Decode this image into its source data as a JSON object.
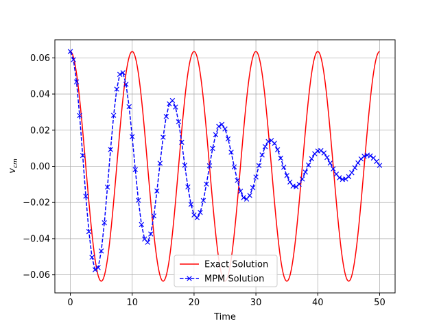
{
  "chart_data": {
    "type": "line",
    "title": "",
    "xlabel": "Time",
    "ylabel_main": "v",
    "ylabel_sub": "cm",
    "xlim": [
      -2.5,
      52.5
    ],
    "ylim": [
      -0.07,
      0.07
    ],
    "grid": true,
    "legend_placement": "lower-center",
    "x_ticks": [
      0,
      10,
      20,
      30,
      40,
      50
    ],
    "x_tick_labels": [
      "0",
      "10",
      "20",
      "30",
      "40",
      "50"
    ],
    "y_ticks": [
      -0.06,
      -0.04,
      -0.02,
      0.0,
      0.02,
      0.04,
      0.06
    ],
    "y_tick_labels": [
      "−0.06",
      "−0.04",
      "−0.02",
      "0.00",
      "0.02",
      "0.04",
      "0.06"
    ],
    "series": [
      {
        "name": "Exact Solution",
        "color": "#ff0000",
        "style": "solid",
        "marker": "none",
        "x": [
          0,
          1.25,
          2.5,
          3.75,
          5,
          6.25,
          7.5,
          8.75,
          10,
          11.25,
          12.5,
          13.75,
          15,
          16.25,
          17.5,
          18.75,
          20,
          21.25,
          22.5,
          23.75,
          25,
          26.25,
          27.5,
          28.75,
          30,
          31.25,
          32.5,
          33.75,
          35,
          36.25,
          37.5,
          38.75,
          40,
          41.25,
          42.5,
          43.75,
          45,
          46.25,
          47.5,
          48.75,
          50
        ],
        "y": [
          0.0635,
          0.0449,
          0.0,
          -0.0449,
          -0.0635,
          -0.0449,
          0.0,
          0.0449,
          0.0635,
          0.0449,
          0.0,
          -0.0449,
          -0.0635,
          -0.0449,
          0.0,
          0.0449,
          0.0635,
          0.0449,
          0.0,
          -0.0449,
          -0.0635,
          -0.0449,
          0.0,
          0.0449,
          0.0635,
          0.0449,
          0.0,
          -0.0449,
          -0.0635,
          -0.0449,
          0.0,
          0.0449,
          0.0635,
          0.0449,
          0.0,
          -0.0449,
          -0.0635,
          -0.0449,
          0.0,
          0.0449,
          0.0635
        ]
      },
      {
        "name": "MPM Solution",
        "color": "#0000ff",
        "style": "dashed",
        "marker": "x",
        "x": [
          0,
          0.5,
          1,
          1.5,
          2,
          2.5,
          3,
          3.5,
          4,
          4.5,
          5,
          5.5,
          6,
          6.5,
          7,
          7.5,
          8,
          8.5,
          9,
          9.5,
          10,
          10.5,
          11,
          11.5,
          12,
          12.5,
          13,
          13.5,
          14,
          14.5,
          15,
          15.5,
          16,
          16.5,
          17,
          17.5,
          18,
          18.5,
          19,
          19.5,
          20,
          20.5,
          21,
          21.5,
          22,
          22.5,
          23,
          23.5,
          24,
          24.5,
          25,
          25.5,
          26,
          26.5,
          27,
          27.5,
          28,
          28.5,
          29,
          29.5,
          30,
          30.5,
          31,
          31.5,
          32,
          32.5,
          33,
          33.5,
          34,
          34.5,
          35,
          35.5,
          36,
          36.5,
          37,
          37.5,
          38,
          38.5,
          39,
          39.5,
          40,
          40.5,
          41,
          41.5,
          42,
          42.5,
          43,
          43.5,
          44,
          44.5,
          45,
          45.5,
          46,
          46.5,
          47,
          47.5,
          48,
          48.5,
          49,
          49.5,
          50
        ],
        "y": [
          0.0635,
          0.059,
          0.0467,
          0.0281,
          0.006,
          -0.0165,
          -0.0361,
          -0.0503,
          -0.0572,
          -0.056,
          -0.0468,
          -0.0312,
          -0.0115,
          0.0093,
          0.0282,
          0.0427,
          0.0509,
          0.0518,
          0.0454,
          0.033,
          0.0164,
          -0.0018,
          -0.0188,
          -0.0322,
          -0.0402,
          -0.042,
          -0.0374,
          -0.0274,
          -0.0136,
          0.0017,
          0.0161,
          0.0276,
          0.0346,
          0.0364,
          0.0328,
          0.0246,
          0.0133,
          0.0006,
          -0.0114,
          -0.021,
          -0.0269,
          -0.0284,
          -0.0255,
          -0.0189,
          -0.0098,
          0.0003,
          0.0099,
          0.0175,
          0.0221,
          0.0232,
          0.0207,
          0.0152,
          0.0078,
          -0.0003,
          -0.0078,
          -0.0138,
          -0.0173,
          -0.0181,
          -0.0161,
          -0.0118,
          -0.0059,
          0.0004,
          0.0063,
          0.0109,
          0.0137,
          0.0143,
          0.0127,
          0.0092,
          0.0045,
          -0.0005,
          -0.0051,
          -0.0087,
          -0.0109,
          -0.0113,
          -0.0099,
          -0.007,
          -0.0032,
          0.0007,
          0.0042,
          0.007,
          0.0085,
          0.0087,
          0.0074,
          0.0049,
          0.0018,
          -0.0014,
          -0.0043,
          -0.0063,
          -0.0072,
          -0.007,
          -0.0057,
          -0.0035,
          -0.0008,
          0.0019,
          0.0041,
          0.0056,
          0.0062,
          0.0058,
          0.0046,
          0.0027,
          0.0005
        ]
      }
    ]
  }
}
